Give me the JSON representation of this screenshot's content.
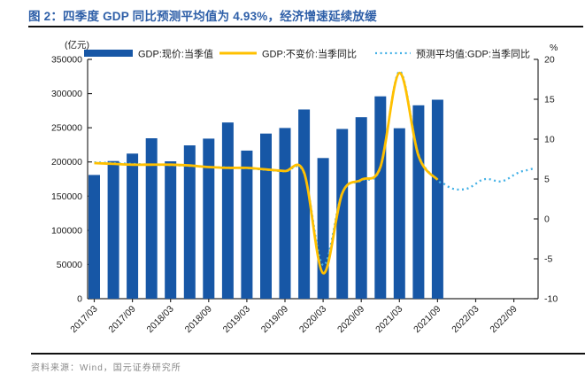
{
  "page": {
    "title": "图 2：四季度 GDP 同比预测平均值为 4.93%，经济增速延续放缓",
    "source": "资料来源：Wind，国元证券研究所"
  },
  "chart_data": {
    "type": "bar+line combo, dual axis",
    "title": "图 2：四季度 GDP 同比预测平均值为 4.93%，经济增速延续放缓",
    "unit_left": "(亿元)",
    "unit_right": "%",
    "grid": false,
    "legend_position": "top",
    "categories": [
      "2017/03",
      "2017/06",
      "2017/09",
      "2017/12",
      "2018/03",
      "2018/06",
      "2018/09",
      "2018/12",
      "2019/03",
      "2019/06",
      "2019/09",
      "2019/12",
      "2020/03",
      "2020/06",
      "2020/09",
      "2020/12",
      "2021/03",
      "2021/06",
      "2021/09",
      "2021/12",
      "2022/03",
      "2022/06",
      "2022/09",
      "2022/12"
    ],
    "x_tick_labels": [
      "2017/03",
      "2017/09",
      "2018/03",
      "2018/09",
      "2019/03",
      "2019/09",
      "2020/03",
      "2020/09",
      "2021/03",
      "2021/09",
      "2022/03",
      "2022/09"
    ],
    "left_axis": {
      "min": 0,
      "max": 350000,
      "step": 50000,
      "ticks": [
        "0",
        "50000",
        "100000",
        "150000",
        "200000",
        "250000",
        "300000",
        "350000"
      ]
    },
    "right_axis": {
      "min": -10,
      "max": 20,
      "step": 5,
      "ticks": [
        "-10",
        "-5",
        "0",
        "5",
        "10",
        "15",
        "20"
      ]
    },
    "series": [
      {
        "name": "GDP:现价:当季值",
        "type": "bar",
        "axis": "left",
        "color": "#1757a6",
        "values": [
          181000,
          201300,
          212200,
          234600,
          200900,
          224300,
          234100,
          257700,
          216600,
          241500,
          249700,
          276800,
          205700,
          248300,
          265500,
          296000,
          249300,
          282900,
          291000
        ]
      },
      {
        "name": "GDP:不变价:当季同比",
        "type": "line",
        "axis": "right",
        "color": "#ffc000",
        "values": [
          7.0,
          6.9,
          6.8,
          6.8,
          6.8,
          6.7,
          6.5,
          6.4,
          6.4,
          6.2,
          6.0,
          5.8,
          -6.8,
          3.2,
          4.9,
          6.5,
          18.3,
          7.9,
          4.9
        ]
      },
      {
        "name": "预测平均值:GDP:当季同比",
        "type": "dotted-line",
        "axis": "right",
        "color": "#41b0e6",
        "fitted_values": [
          7.1,
          7.0,
          6.9,
          6.8,
          6.75,
          6.65,
          6.5,
          6.45,
          6.35,
          6.15,
          5.95,
          5.7,
          -5.8,
          3.3,
          4.8,
          6.4,
          18.5,
          8.1,
          4.9
        ],
        "forecast_monthly_after_2021_09": [
          4.4,
          3.9,
          3.7,
          3.7,
          3.9,
          4.4,
          4.9,
          5.0,
          4.8,
          4.7,
          5.0,
          5.5,
          5.9,
          6.1,
          6.3
        ]
      }
    ]
  }
}
